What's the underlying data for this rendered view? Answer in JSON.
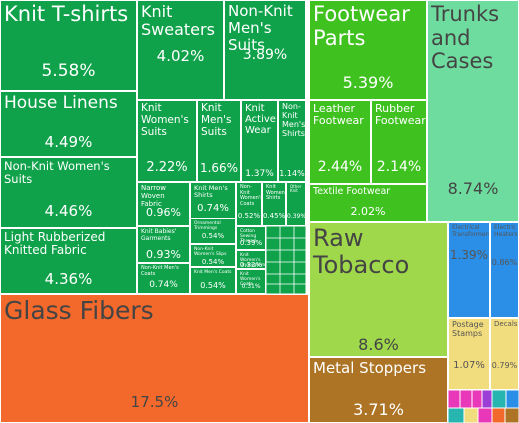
{
  "chart_data": {
    "type": "treemap",
    "colors": {
      "textiles": "#0fa24a",
      "footwear": "#3fc21f",
      "trunks": "#6fdc9f",
      "tobacco": "#9fd84b",
      "glass": "#f2692b",
      "metal": "#ad7425",
      "blue": "#2b8fe8",
      "paper": "#f2dd7e",
      "misc_magenta": "#e837b8",
      "misc_purple": "#9b3fd6",
      "misc_teal": "#27b5b0"
    },
    "items": [
      {
        "label": "Knit T-shirts",
        "value": "5.58%",
        "group": "textiles"
      },
      {
        "label": "Knit Sweaters",
        "value": "4.02%",
        "group": "textiles"
      },
      {
        "label": "Non-Knit Men's Suits",
        "value": "3.89%",
        "group": "textiles"
      },
      {
        "label": "House Linens",
        "value": "4.49%",
        "group": "textiles"
      },
      {
        "label": "Non-Knit Women's Suits",
        "value": "4.46%",
        "group": "textiles"
      },
      {
        "label": "Light Rubberized Knitted Fabric",
        "value": "4.36%",
        "group": "textiles"
      },
      {
        "label": "Knit Women's Suits",
        "value": "2.22%",
        "group": "textiles"
      },
      {
        "label": "Knit Men's Suits",
        "value": "1.66%",
        "group": "textiles"
      },
      {
        "label": "Knit Active Wear",
        "value": "1.37%",
        "group": "textiles"
      },
      {
        "label": "Non-Knit Men's Shirts",
        "value": "1.14%",
        "group": "textiles"
      },
      {
        "label": "Narrow Woven Fabric",
        "value": "0.96%",
        "group": "textiles"
      },
      {
        "label": "Knit Men's Shirts",
        "value": "0.74%",
        "group": "textiles"
      },
      {
        "label": "Non-Knit Women's Coats",
        "value": "0.52%",
        "group": "textiles"
      },
      {
        "label": "Knit Women's Shirts",
        "value": "0.45%",
        "group": "textiles"
      },
      {
        "label": "Other Knit",
        "value": "0.39%",
        "group": "textiles"
      },
      {
        "label": "Knit Babies' Garments",
        "value": "0.93%",
        "group": "textiles"
      },
      {
        "label": "Ornamental Trimmings",
        "value": "0.54%",
        "group": "textiles"
      },
      {
        "label": "Cotton Sewing Thread",
        "value": "0.39%",
        "group": "textiles"
      },
      {
        "label": "Non-Knit Women's Slips",
        "value": "0.54%",
        "group": "textiles"
      },
      {
        "label": "Knit Women's Undergarments",
        "value": "0.32%",
        "group": "textiles"
      },
      {
        "label": "Non-Knit Men's Coats",
        "value": "0.74%",
        "group": "textiles"
      },
      {
        "label": "Knit Men's Coats",
        "value": "0.54%",
        "group": "textiles"
      },
      {
        "label": "Knit Women's Coats",
        "value": "0.31%",
        "group": "textiles"
      },
      {
        "label": "Footwear Parts",
        "value": "5.39%",
        "group": "footwear"
      },
      {
        "label": "Leather Footwear",
        "value": "2.44%",
        "group": "footwear"
      },
      {
        "label": "Rubber Footwear",
        "value": "2.14%",
        "group": "footwear"
      },
      {
        "label": "Textile Footwear",
        "value": "2.02%",
        "group": "footwear"
      },
      {
        "label": "Trunks and Cases",
        "value": "8.74%",
        "group": "trunks"
      },
      {
        "label": "Glass Fibers",
        "value": "17.5%",
        "group": "glass"
      },
      {
        "label": "Raw Tobacco",
        "value": "8.6%",
        "group": "tobacco"
      },
      {
        "label": "Metal Stoppers",
        "value": "3.71%",
        "group": "metal"
      },
      {
        "label": "Electrical Transformers",
        "value": "1.39%",
        "group": "blue"
      },
      {
        "label": "Electric Heaters",
        "value": "0.86%",
        "group": "blue"
      },
      {
        "label": "Postage Stamps",
        "value": "1.07%",
        "group": "paper"
      },
      {
        "label": "Decals",
        "value": "0.79%",
        "group": "paper"
      }
    ]
  }
}
